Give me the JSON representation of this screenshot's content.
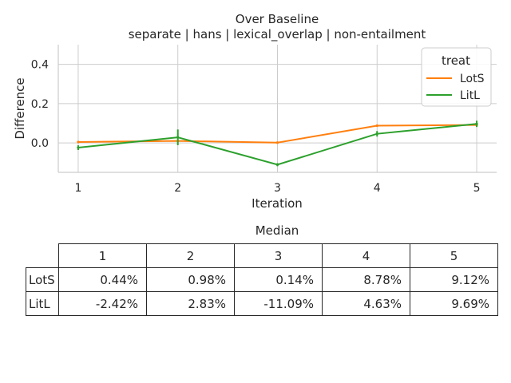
{
  "chart_data": {
    "type": "line",
    "title": "Over Baseline",
    "subtitle": "separate | hans | lexical_overlap | non-entailment",
    "xlabel": "Iteration",
    "ylabel": "Difference",
    "x": [
      1,
      2,
      3,
      4,
      5
    ],
    "x_ticks": [
      "1",
      "2",
      "3",
      "4",
      "5"
    ],
    "y_ticks": [
      "0.0",
      "0.2",
      "0.4"
    ],
    "ylim": [
      -0.15,
      0.5
    ],
    "grid": true,
    "legend": {
      "title": "treat",
      "position": "top-right"
    },
    "series": [
      {
        "name": "LotS",
        "color": "#ff7f0e",
        "values": [
          0.0044,
          0.0098,
          0.0014,
          0.0878,
          0.0912
        ]
      },
      {
        "name": "LitL",
        "color": "#2ca02c",
        "values": [
          -0.0242,
          0.0283,
          -0.1109,
          0.0463,
          0.0969
        ],
        "error": [
          0.012,
          0.04,
          0.008,
          0.014,
          0.016
        ]
      }
    ]
  },
  "table": {
    "title": "Median",
    "columns": [
      "1",
      "2",
      "3",
      "4",
      "5"
    ],
    "rows": [
      {
        "label": "LotS",
        "values": [
          "0.44%",
          "0.98%",
          "0.14%",
          "8.78%",
          "9.12%"
        ]
      },
      {
        "label": "LitL",
        "values": [
          "-2.42%",
          "2.83%",
          "-11.09%",
          "4.63%",
          "9.69%"
        ]
      }
    ]
  }
}
